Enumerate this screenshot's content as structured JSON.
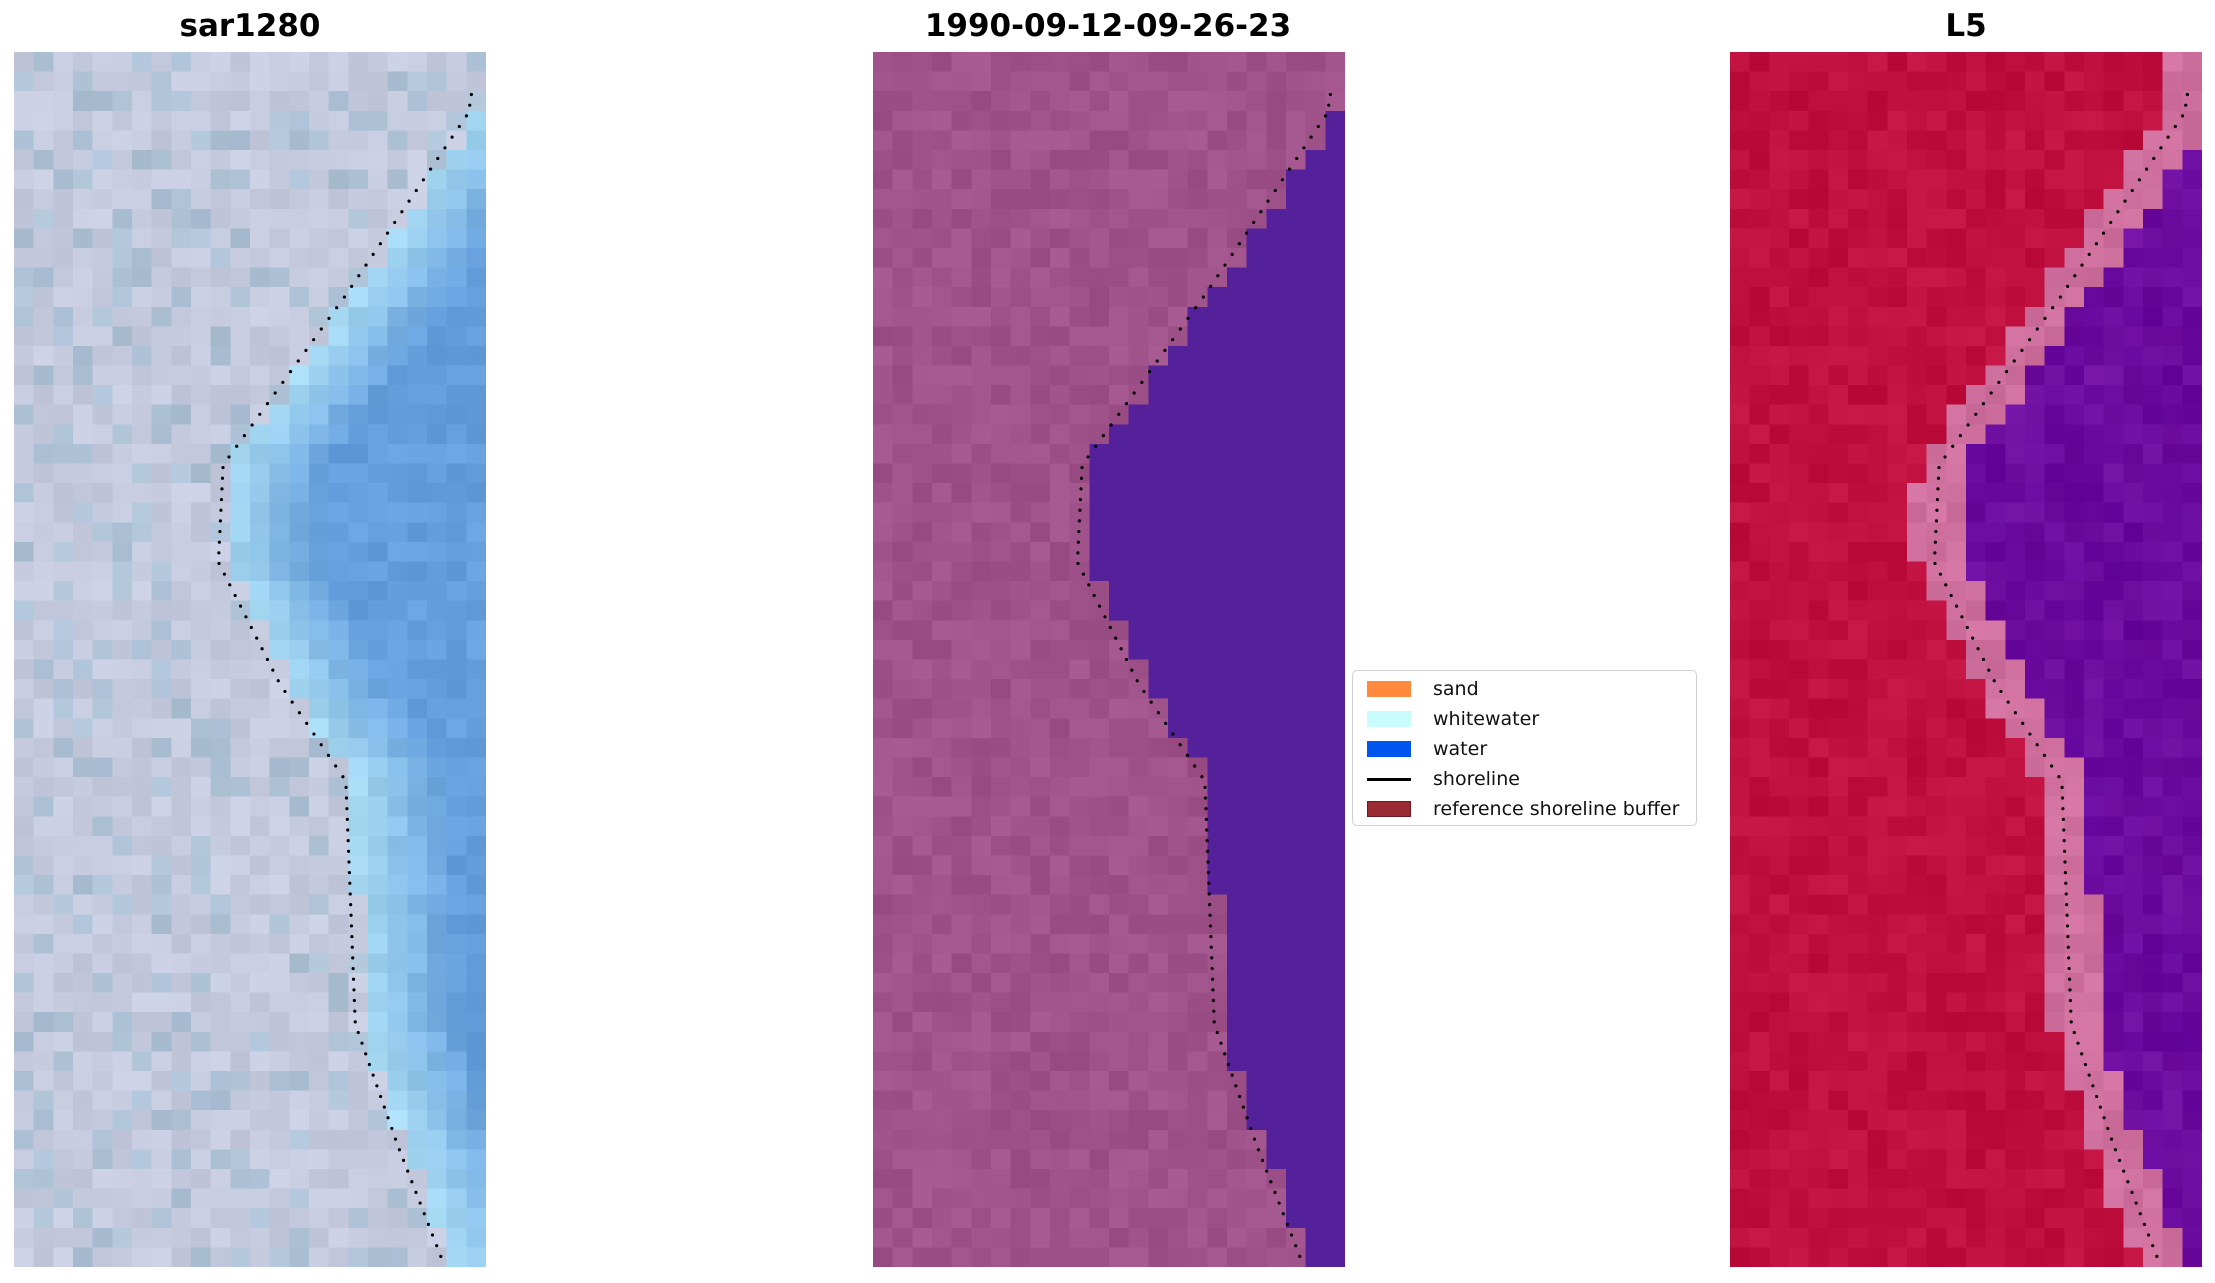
{
  "panels": [
    {
      "title": "sar1280",
      "kind": "rgb-image",
      "colors": {
        "land": "#c6cbe0",
        "nearshore": "#a9dcf4",
        "water": "#669fdd"
      }
    },
    {
      "title": "1990-09-12-09-26-23",
      "kind": "classified-image",
      "colors": {
        "land": "#a0528a",
        "water": "#55219a"
      }
    },
    {
      "title": "L5",
      "kind": "mndwi-image",
      "colors": {
        "land": "#c01040",
        "buffer": "#d0709e",
        "water": "#680aa0"
      }
    }
  ],
  "legend": {
    "placement": "center",
    "items": [
      {
        "label": "sand",
        "color": "#ff8a3d",
        "type": "patch"
      },
      {
        "label": "whitewater",
        "color": "#c8fbfb",
        "type": "patch"
      },
      {
        "label": "water",
        "color": "#0055ee",
        "type": "patch"
      },
      {
        "label": "shoreline",
        "color": "#000000",
        "type": "line"
      },
      {
        "label": "reference shoreline buffer",
        "color": "#9a2b32",
        "type": "patch"
      }
    ]
  }
}
